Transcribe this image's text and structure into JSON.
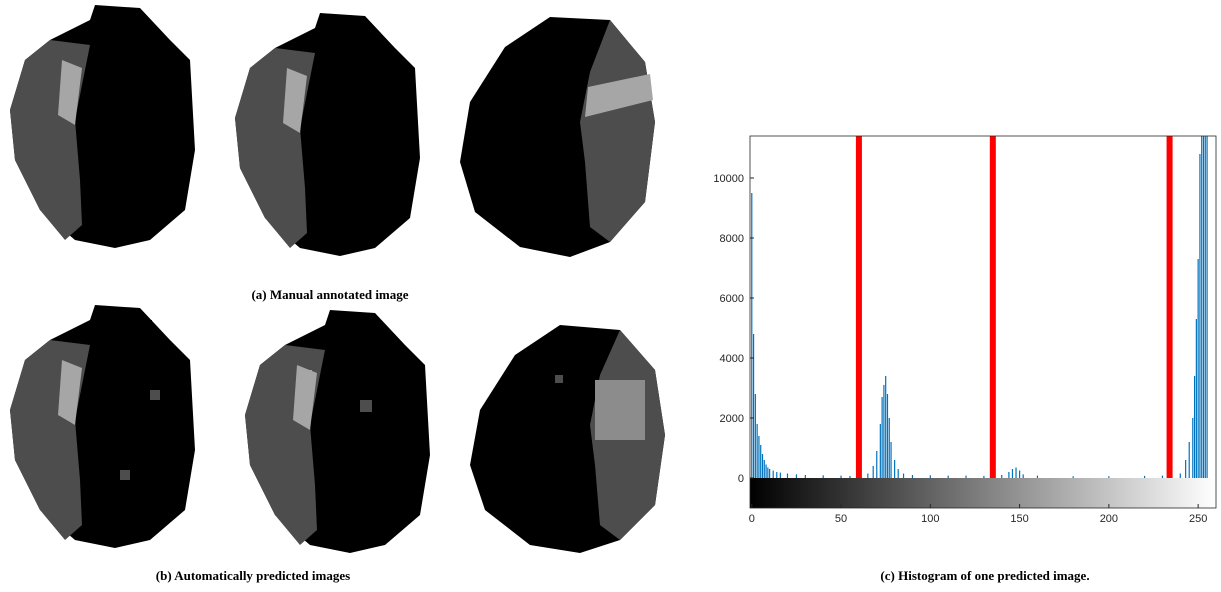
{
  "figure": {
    "caption_a": "(a) Manual annotated image",
    "caption_b": "(b) Automatically predicted images"
  },
  "chart_data": {
    "type": "bar",
    "caption": "(c) Histogram of one predicted image.",
    "x": [
      0,
      1,
      2,
      3,
      4,
      5,
      6,
      7,
      8,
      9,
      10,
      12,
      14,
      16,
      20,
      25,
      30,
      40,
      50,
      55,
      65,
      68,
      70,
      72,
      73,
      74,
      75,
      76,
      77,
      78,
      80,
      82,
      85,
      90,
      100,
      110,
      120,
      130,
      140,
      144,
      146,
      148,
      150,
      152,
      160,
      180,
      200,
      220,
      230,
      240,
      243,
      245,
      247,
      248,
      249,
      250,
      251,
      252,
      253,
      254,
      255
    ],
    "values": [
      9500,
      4800,
      2800,
      1800,
      1400,
      1100,
      800,
      600,
      450,
      350,
      300,
      250,
      200,
      180,
      150,
      120,
      100,
      90,
      80,
      70,
      150,
      400,
      900,
      1800,
      2700,
      3100,
      3400,
      2800,
      2000,
      1200,
      600,
      300,
      150,
      100,
      90,
      80,
      80,
      70,
      100,
      200,
      300,
      350,
      250,
      120,
      80,
      60,
      60,
      70,
      80,
      150,
      600,
      1200,
      2000,
      3400,
      5300,
      7300,
      10800,
      11400,
      11400,
      11400,
      11400
    ],
    "color": "#0072bd",
    "thresholds": [
      60,
      135,
      234
    ],
    "threshold_color": "#ff0000",
    "xlim": [
      -1,
      260
    ],
    "ylim": [
      0,
      11400
    ],
    "xticks": [
      0,
      50,
      100,
      150,
      200,
      250
    ],
    "yticks": [
      0,
      2000,
      4000,
      6000,
      8000,
      10000
    ]
  }
}
